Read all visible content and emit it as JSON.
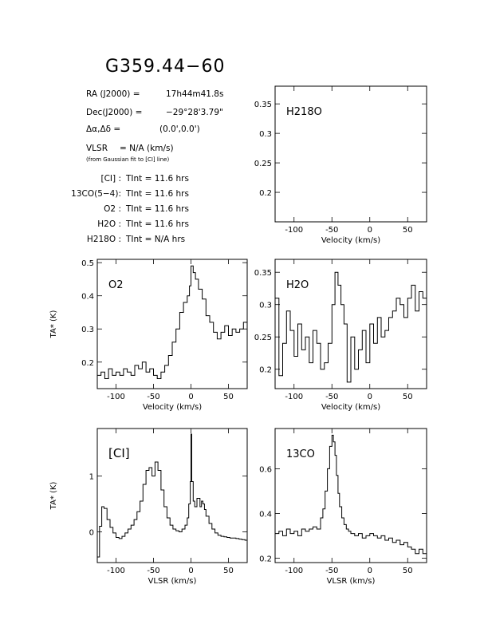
{
  "title": "G359.44−60",
  "header": {
    "ra_label": "RA (J2000)  =",
    "ra_value": "17h44m41.8s",
    "dec_label": "Dec(J2000)  =",
    "dec_value": "−29°28'3.79\"",
    "offset_label": "Δα,Δδ  =",
    "offset_value": "(0.0',0.0')",
    "vlsr_label": "VLSR",
    "vlsr_value": "= N/A  (km/s)",
    "fit_note": "(from Gaussian fit to [CI] line)"
  },
  "integrations": [
    {
      "line": "[CI] :",
      "tint": "TInt = 11.6 hrs"
    },
    {
      "line": "13CO(5−4):",
      "tint": "TInt = 11.6 hrs"
    },
    {
      "line": "O2 :",
      "tint": "TInt = 11.6 hrs"
    },
    {
      "line": "H2O :",
      "tint": "TInt = 11.6 hrs"
    },
    {
      "line": "H218O :",
      "tint": "TInt = N/A  hrs"
    }
  ],
  "chart_data": [
    {
      "type": "line",
      "id": "h218o",
      "label": "H218O",
      "xlabel": "Velocity (km/s)",
      "ylabel": "",
      "xlim": [
        -125,
        75
      ],
      "ylim": [
        0.15,
        0.38
      ],
      "xticks": [
        -100,
        -50,
        0,
        50
      ],
      "yticks": [
        0.2,
        0.25,
        0.3,
        0.35
      ],
      "x": [],
      "y": []
    },
    {
      "type": "line",
      "id": "o2",
      "label": "O2",
      "xlabel": "Velocity (km/s)",
      "ylabel": "TA* (K)",
      "xlim": [
        -125,
        75
      ],
      "ylim": [
        0.12,
        0.51
      ],
      "xticks": [
        -100,
        -50,
        0,
        50
      ],
      "yticks": [
        0.2,
        0.3,
        0.4,
        0.5
      ],
      "x": [
        -125,
        -120,
        -115,
        -110,
        -105,
        -100,
        -95,
        -90,
        -85,
        -80,
        -75,
        -70,
        -65,
        -60,
        -55,
        -50,
        -45,
        -40,
        -35,
        -30,
        -25,
        -20,
        -15,
        -10,
        -5,
        -2,
        0,
        3,
        6,
        10,
        15,
        20,
        25,
        30,
        35,
        40,
        45,
        50,
        55,
        60,
        65,
        70,
        75
      ],
      "y": [
        0.16,
        0.17,
        0.15,
        0.18,
        0.16,
        0.17,
        0.16,
        0.18,
        0.17,
        0.16,
        0.19,
        0.18,
        0.2,
        0.17,
        0.18,
        0.16,
        0.15,
        0.17,
        0.19,
        0.22,
        0.26,
        0.3,
        0.35,
        0.38,
        0.4,
        0.43,
        0.49,
        0.47,
        0.45,
        0.42,
        0.39,
        0.34,
        0.32,
        0.29,
        0.27,
        0.29,
        0.31,
        0.28,
        0.3,
        0.29,
        0.3,
        0.32,
        0.35
      ]
    },
    {
      "type": "line",
      "id": "h2o",
      "label": "H2O",
      "xlabel": "Velocity (km/s)",
      "ylabel": "",
      "xlim": [
        -125,
        75
      ],
      "ylim": [
        0.17,
        0.37
      ],
      "xticks": [
        -100,
        -50,
        0,
        50
      ],
      "yticks": [
        0.2,
        0.25,
        0.3,
        0.35
      ],
      "x": [
        -125,
        -120,
        -115,
        -110,
        -105,
        -100,
        -95,
        -90,
        -85,
        -80,
        -75,
        -70,
        -65,
        -60,
        -55,
        -50,
        -46,
        -42,
        -38,
        -34,
        -30,
        -25,
        -20,
        -15,
        -10,
        -5,
        0,
        5,
        10,
        15,
        20,
        25,
        30,
        35,
        40,
        45,
        50,
        55,
        60,
        65,
        70,
        75
      ],
      "y": [
        0.31,
        0.19,
        0.24,
        0.29,
        0.26,
        0.22,
        0.27,
        0.23,
        0.25,
        0.21,
        0.26,
        0.24,
        0.2,
        0.21,
        0.24,
        0.3,
        0.35,
        0.33,
        0.3,
        0.27,
        0.18,
        0.25,
        0.2,
        0.23,
        0.26,
        0.21,
        0.27,
        0.24,
        0.28,
        0.25,
        0.26,
        0.28,
        0.29,
        0.31,
        0.3,
        0.28,
        0.31,
        0.33,
        0.29,
        0.32,
        0.31,
        0.32
      ]
    },
    {
      "type": "line",
      "id": "ci",
      "label": "[CI]",
      "xlabel": "VLSR (km/s)",
      "ylabel": "TA* (K)",
      "xlim": [
        -125,
        75
      ],
      "ylim": [
        -0.55,
        1.85
      ],
      "xticks": [
        -100,
        -50,
        0,
        50
      ],
      "yticks": [
        0,
        1
      ],
      "x": [
        -125,
        -122,
        -119,
        -116,
        -112,
        -108,
        -104,
        -100,
        -96,
        -92,
        -88,
        -84,
        -80,
        -76,
        -72,
        -68,
        -64,
        -60,
        -56,
        -52,
        -48,
        -44,
        -40,
        -36,
        -32,
        -28,
        -24,
        -20,
        -16,
        -12,
        -8,
        -5,
        -3,
        -1,
        0,
        1,
        3,
        5,
        8,
        12,
        14,
        16,
        18,
        20,
        24,
        28,
        32,
        36,
        40,
        44,
        48,
        52,
        56,
        60,
        64,
        68,
        72,
        75
      ],
      "y": [
        -0.45,
        0.1,
        0.45,
        0.42,
        0.22,
        0.08,
        -0.02,
        -0.1,
        -0.12,
        -0.08,
        -0.02,
        0.05,
        0.12,
        0.22,
        0.36,
        0.55,
        0.85,
        1.1,
        1.15,
        1.0,
        1.25,
        1.1,
        0.75,
        0.45,
        0.25,
        0.12,
        0.05,
        0.02,
        0.0,
        0.05,
        0.12,
        0.25,
        0.5,
        0.9,
        1.75,
        0.9,
        0.55,
        0.45,
        0.6,
        0.45,
        0.55,
        0.5,
        0.4,
        0.28,
        0.15,
        0.05,
        -0.02,
        -0.06,
        -0.08,
        -0.09,
        -0.1,
        -0.11,
        -0.11,
        -0.12,
        -0.13,
        -0.14,
        -0.15,
        -0.16
      ]
    },
    {
      "type": "line",
      "id": "co13",
      "label": "13CO",
      "xlabel": "VLSR (km/s)",
      "ylabel": "",
      "xlim": [
        -125,
        75
      ],
      "ylim": [
        0.18,
        0.78
      ],
      "xticks": [
        -100,
        -50,
        0,
        50
      ],
      "yticks": [
        0.2,
        0.4,
        0.6
      ],
      "x": [
        -125,
        -120,
        -115,
        -110,
        -105,
        -100,
        -95,
        -90,
        -85,
        -80,
        -75,
        -70,
        -65,
        -62,
        -59,
        -56,
        -53,
        -50,
        -48,
        -46,
        -44,
        -42,
        -40,
        -37,
        -34,
        -31,
        -28,
        -25,
        -20,
        -15,
        -10,
        -5,
        0,
        5,
        10,
        15,
        20,
        25,
        30,
        35,
        40,
        45,
        50,
        55,
        60,
        65,
        70,
        75
      ],
      "y": [
        0.31,
        0.32,
        0.3,
        0.33,
        0.31,
        0.32,
        0.3,
        0.33,
        0.32,
        0.33,
        0.34,
        0.33,
        0.38,
        0.42,
        0.5,
        0.6,
        0.7,
        0.75,
        0.72,
        0.66,
        0.57,
        0.49,
        0.43,
        0.38,
        0.35,
        0.33,
        0.32,
        0.31,
        0.3,
        0.31,
        0.29,
        0.3,
        0.31,
        0.3,
        0.29,
        0.3,
        0.28,
        0.29,
        0.27,
        0.28,
        0.26,
        0.27,
        0.25,
        0.24,
        0.22,
        0.24,
        0.22,
        0.24
      ]
    }
  ]
}
